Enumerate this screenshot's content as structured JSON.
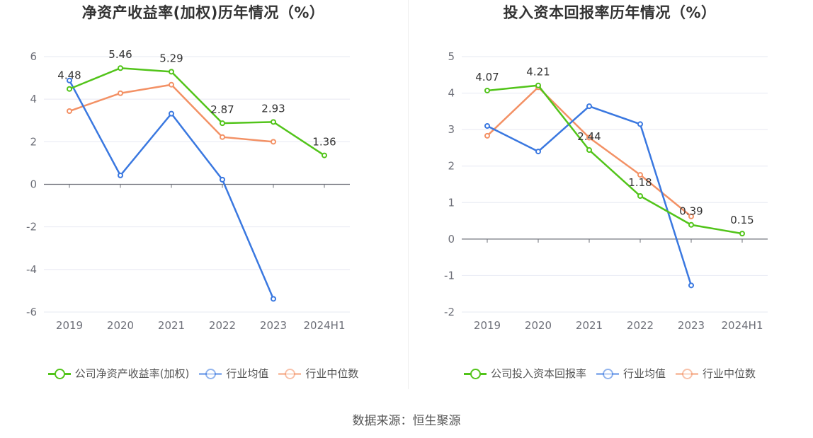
{
  "source": "数据来源：恒生聚源",
  "chart_data": [
    {
      "type": "line",
      "title": "净资产收益率(加权)历年情况（%）",
      "categories": [
        "2019",
        "2020",
        "2021",
        "2022",
        "2023",
        "2024H1"
      ],
      "ylim": [
        -6,
        6
      ],
      "yticks": [
        -6,
        -4,
        -2,
        0,
        2,
        4,
        6
      ],
      "series": [
        {
          "name": "公司净资产收益率(加权)",
          "color": "#52c41a",
          "labels": true,
          "values": [
            4.48,
            5.46,
            5.29,
            2.87,
            2.93,
            1.36
          ]
        },
        {
          "name": "行业均值",
          "color": "#3a78e0",
          "labels": false,
          "values": [
            4.88,
            0.42,
            3.32,
            0.22,
            -5.38,
            null
          ]
        },
        {
          "name": "行业中位数",
          "color": "#f39165",
          "labels": false,
          "values": [
            3.44,
            4.28,
            4.68,
            2.22,
            2.0,
            null
          ]
        }
      ],
      "legend": [
        "公司净资产收益率(加权)",
        "行业均值",
        "行业中位数"
      ]
    },
    {
      "type": "line",
      "title": "投入资本回报率历年情况（%）",
      "categories": [
        "2019",
        "2020",
        "2021",
        "2022",
        "2023",
        "2024H1"
      ],
      "ylim": [
        -2,
        5
      ],
      "yticks": [
        -2,
        -1,
        0,
        1,
        2,
        3,
        4,
        5
      ],
      "series": [
        {
          "name": "公司投入资本回报率",
          "color": "#52c41a",
          "labels": true,
          "values": [
            4.07,
            4.21,
            2.44,
            1.18,
            0.39,
            0.15
          ]
        },
        {
          "name": "行业均值",
          "color": "#3a78e0",
          "labels": false,
          "values": [
            3.1,
            2.4,
            3.64,
            3.15,
            -1.27,
            null
          ]
        },
        {
          "name": "行业中位数",
          "color": "#f39165",
          "labels": false,
          "values": [
            2.83,
            4.16,
            2.78,
            1.76,
            0.62,
            null
          ]
        }
      ],
      "legend": [
        "公司投入资本回报率",
        "行业均值",
        "行业中位数"
      ]
    }
  ]
}
